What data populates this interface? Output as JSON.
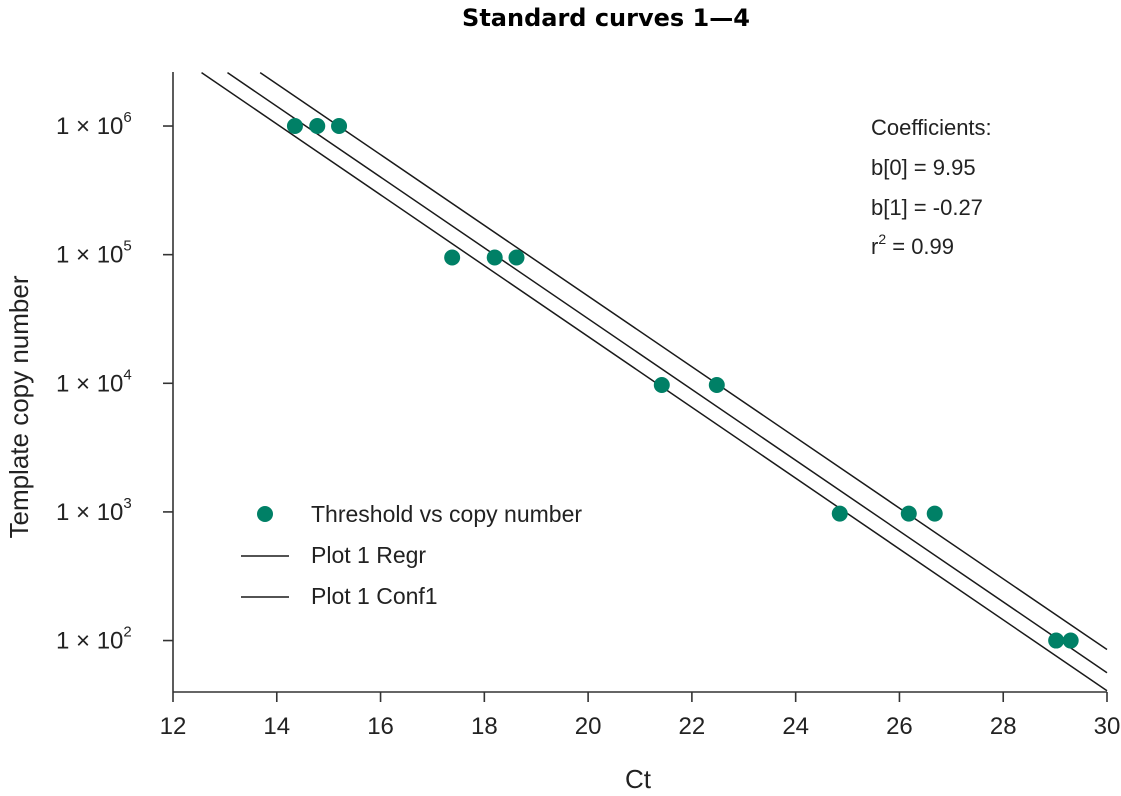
{
  "chart_data": {
    "type": "scatter",
    "title": "Standard curves 1—4",
    "xlabel": "Ct",
    "ylabel": "Template copy number",
    "xlim": [
      12,
      30
    ],
    "ylim_log10": [
      1.6,
      6.42
    ],
    "xticks": [
      12,
      14,
      16,
      18,
      20,
      22,
      24,
      26,
      28,
      30
    ],
    "yticks": [
      {
        "mantissa": "1 × 10",
        "exp": "6",
        "log10": 6
      },
      {
        "mantissa": "1 × 10",
        "exp": "5",
        "log10": 5
      },
      {
        "mantissa": "1 × 10",
        "exp": "4",
        "log10": 4
      },
      {
        "mantissa": "1 × 10",
        "exp": "3",
        "log10": 3
      },
      {
        "mantissa": "1 × 10",
        "exp": "2",
        "log10": 2
      }
    ],
    "series": [
      {
        "name": "Threshold vs copy number",
        "color": "#008066",
        "points": [
          {
            "x": 14.35,
            "y": 1000000
          },
          {
            "x": 14.78,
            "y": 1000000
          },
          {
            "x": 15.2,
            "y": 1000000
          },
          {
            "x": 17.38,
            "y": 95000
          },
          {
            "x": 18.2,
            "y": 95000
          },
          {
            "x": 18.62,
            "y": 95000
          },
          {
            "x": 21.42,
            "y": 9700
          },
          {
            "x": 22.48,
            "y": 9700
          },
          {
            "x": 24.85,
            "y": 970
          },
          {
            "x": 26.18,
            "y": 970
          },
          {
            "x": 26.68,
            "y": 970
          },
          {
            "x": 29.02,
            "y": 100
          },
          {
            "x": 29.3,
            "y": 100
          }
        ]
      },
      {
        "name": "Plot 1 Regr",
        "type": "line",
        "color": "#1a1a1a",
        "line": [
          {
            "x": 13.05,
            "y_log10": 6.415
          },
          {
            "x": 30.0,
            "y_log10": 1.75
          }
        ]
      },
      {
        "name": "Plot 1 Conf1",
        "type": "line",
        "color": "#1a1a1a",
        "lines": [
          [
            {
              "x": 12.55,
              "y_log10": 6.415
            },
            {
              "x": 30.0,
              "y_log10": 1.61
            }
          ],
          [
            {
              "x": 13.68,
              "y_log10": 6.415
            },
            {
              "x": 30.0,
              "y_log10": 1.93
            }
          ]
        ]
      }
    ],
    "legend": {
      "position": "bottom-left",
      "entries": [
        "Threshold vs copy number",
        "Plot 1 Regr",
        "Plot 1 Conf1"
      ]
    },
    "annotation": {
      "position": "top-right",
      "heading": "Coefficients:",
      "b0": "b[0] = 9.95",
      "b1": "b[1] = -0.27",
      "r2_prefix": "r",
      "r2_exp": "2",
      "r2_value": " = 0.99"
    }
  }
}
